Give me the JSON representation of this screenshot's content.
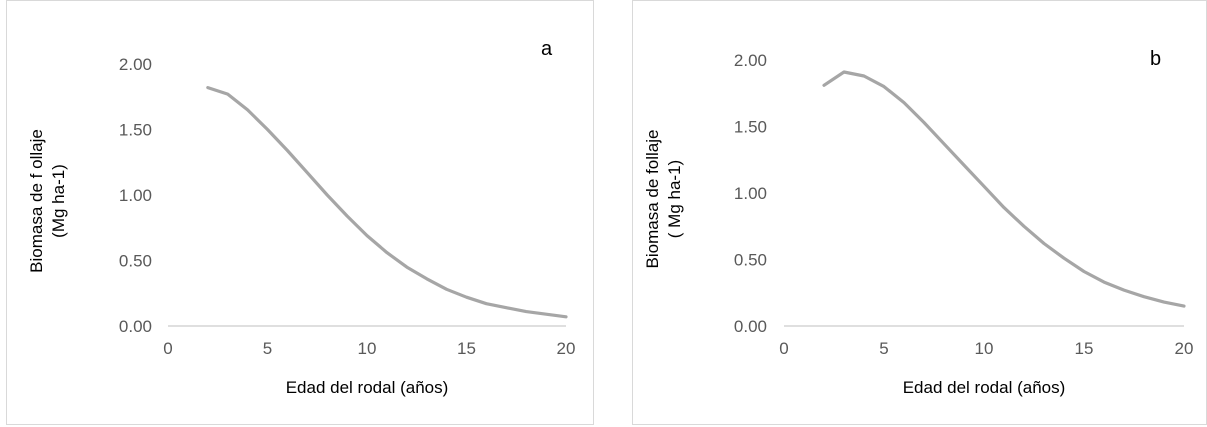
{
  "chart_data": [
    {
      "type": "line",
      "panel_label": "a",
      "xlabel": "Edad del rodal (años)",
      "ylabel_lines": [
        "Biomasa de f ollaje",
        "(Mg ha-1)"
      ],
      "xlim": [
        0,
        20
      ],
      "ylim": [
        0,
        2
      ],
      "x_ticks": [
        "0",
        "5",
        "10",
        "15",
        "20"
      ],
      "y_ticks": [
        "0.00",
        "0.50",
        "1.00",
        "1.50",
        "2.00"
      ],
      "grid": false,
      "line_color": "#a6a6a6",
      "series": [
        {
          "x": [
            2,
            3,
            4,
            5,
            6,
            7,
            8,
            9,
            10,
            11,
            12,
            13,
            14,
            15,
            16,
            17,
            18,
            19,
            20
          ],
          "values": [
            1.82,
            1.77,
            1.65,
            1.5,
            1.34,
            1.17,
            1.0,
            0.84,
            0.69,
            0.56,
            0.45,
            0.36,
            0.28,
            0.22,
            0.17,
            0.14,
            0.11,
            0.09,
            0.07
          ]
        }
      ]
    },
    {
      "type": "line",
      "panel_label": "b",
      "xlabel": "Edad del rodal (años)",
      "ylabel_lines": [
        "Biomasa de follaje",
        "( Mg ha-1)"
      ],
      "xlim": [
        0,
        20
      ],
      "ylim": [
        0,
        2
      ],
      "x_ticks": [
        "0",
        "5",
        "10",
        "15",
        "20"
      ],
      "y_ticks": [
        "0.00",
        "0.50",
        "1.00",
        "1.50",
        "2.00"
      ],
      "grid": false,
      "line_color": "#a6a6a6",
      "series": [
        {
          "x": [
            2,
            3,
            4,
            5,
            6,
            7,
            8,
            9,
            10,
            11,
            12,
            13,
            14,
            15,
            16,
            17,
            18,
            19,
            20
          ],
          "values": [
            1.81,
            1.91,
            1.88,
            1.8,
            1.68,
            1.53,
            1.37,
            1.21,
            1.05,
            0.89,
            0.75,
            0.62,
            0.51,
            0.41,
            0.33,
            0.27,
            0.22,
            0.18,
            0.15
          ]
        }
      ]
    }
  ]
}
